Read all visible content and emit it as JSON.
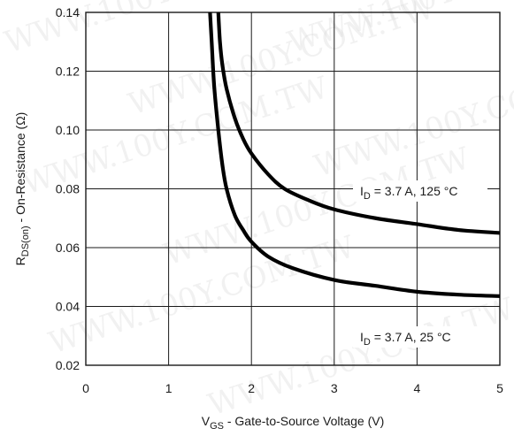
{
  "watermark": "WWW.100Y.COM.TW",
  "chart_data": {
    "type": "line",
    "xlabel": {
      "main": "V",
      "sub": "GS",
      "rest": " - Gate-to-Source Voltage (V)"
    },
    "ylabel": {
      "main": "R",
      "sub": "DS(on)",
      "rest": " - On-Resistance (Ω)"
    },
    "xlim": [
      0,
      5
    ],
    "ylim": [
      0.02,
      0.14
    ],
    "xticks": [
      0,
      1,
      2,
      3,
      4,
      5
    ],
    "yticks": [
      0.02,
      0.04,
      0.06,
      0.08,
      0.1,
      0.12,
      0.14
    ],
    "ytick_labels": [
      "0.02",
      "0.04",
      "0.06",
      "0.08",
      "0.10",
      "0.12",
      "0.14"
    ],
    "grid": true,
    "series": [
      {
        "label_main": "I",
        "label_sub": "D",
        "label_rest": " = 3.7 A, 125 °C",
        "x": [
          1.6,
          1.62,
          1.65,
          1.7,
          1.8,
          1.9,
          2.0,
          2.2,
          2.4,
          2.7,
          3.0,
          3.5,
          4.0,
          4.5,
          5.0
        ],
        "y": [
          0.14,
          0.13,
          0.122,
          0.114,
          0.104,
          0.097,
          0.092,
          0.085,
          0.08,
          0.076,
          0.073,
          0.07,
          0.068,
          0.066,
          0.065
        ]
      },
      {
        "label_main": "I",
        "label_sub": "D",
        "label_rest": " = 3.7 A, 25 °C",
        "x": [
          1.5,
          1.52,
          1.55,
          1.6,
          1.65,
          1.7,
          1.8,
          1.9,
          2.0,
          2.2,
          2.5,
          3.0,
          3.5,
          4.0,
          4.5,
          5.0
        ],
        "y": [
          0.14,
          0.13,
          0.115,
          0.1,
          0.088,
          0.08,
          0.071,
          0.066,
          0.062,
          0.057,
          0.053,
          0.049,
          0.047,
          0.045,
          0.044,
          0.0435
        ]
      }
    ]
  }
}
